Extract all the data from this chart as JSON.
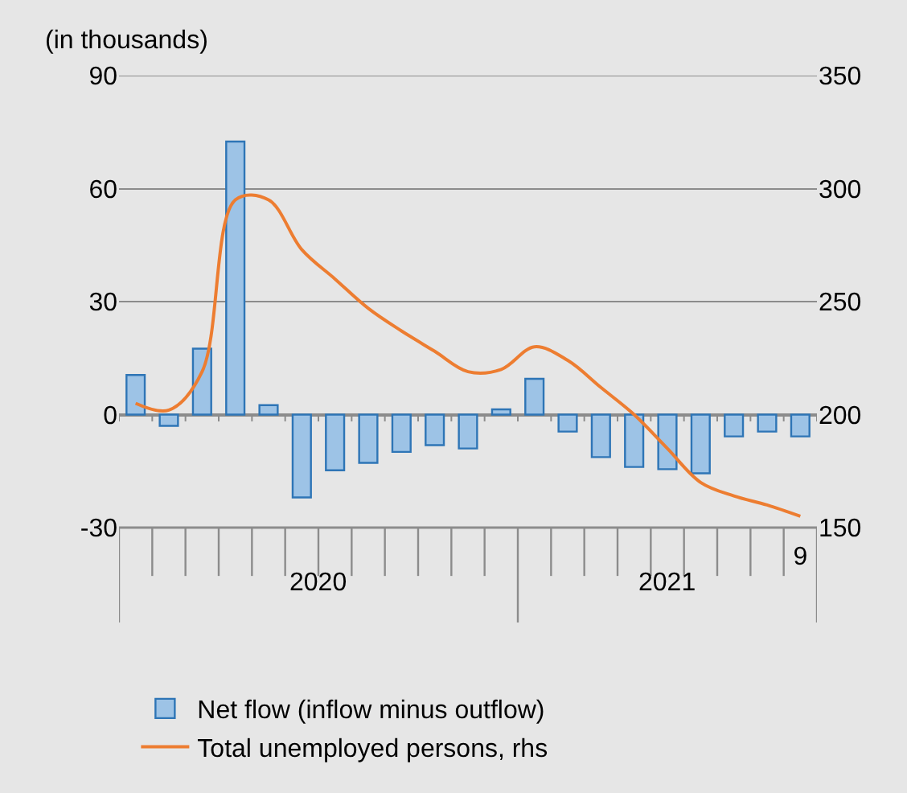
{
  "chart_data": {
    "type": "bar",
    "ylabel": "(in thousands)",
    "categories": [
      null,
      null,
      null,
      null,
      null,
      null,
      null,
      null,
      null,
      null,
      null,
      null,
      null,
      null,
      null,
      null,
      null,
      null,
      null,
      null,
      "9"
    ],
    "series": [
      {
        "name": "Net flow (inflow minus outflow)",
        "color": "#9dc3e6",
        "values": [
          10.5,
          -3,
          17.5,
          72.5,
          2.5,
          -22,
          -14.8,
          -12.8,
          -9.9,
          -8.1,
          -9,
          1.4,
          9.5,
          -4.5,
          -11.3,
          -13.9,
          -14.5,
          -15.6,
          -5.8,
          -4.5,
          -5.8
        ]
      },
      {
        "name": "Total unemployed persons, rhs",
        "type": "line",
        "axis": "y2",
        "color": "#ed7d31",
        "values": [
          205,
          202,
          219,
          295,
          295,
          273,
          260,
          247,
          237,
          228,
          219,
          220,
          230,
          224,
          212,
          200,
          185,
          170,
          164,
          160,
          155
        ]
      }
    ],
    "ylim": [
      -30,
      90
    ],
    "yticks": [
      -30,
      0,
      30,
      60,
      90
    ],
    "y2lim": [
      150,
      350
    ],
    "y2ticks": [
      150,
      200,
      250,
      300,
      350
    ],
    "grid": "y",
    "legend": "bottom",
    "annotations": [
      "2020",
      "2021"
    ]
  }
}
